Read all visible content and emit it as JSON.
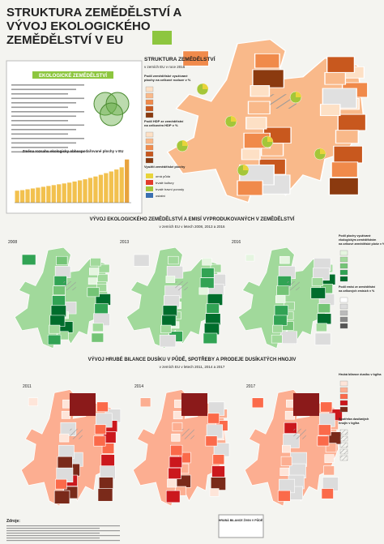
{
  "header": {
    "title_lines": [
      "STRUKTURA ZEMĚDĚLSTVÍ A",
      "VÝVOJ EKOLOGICKÉHO",
      "ZEMĚDĚLSTVÍ V EU"
    ]
  },
  "eco_box": {
    "title": "EKOLOGICKÉ ZEMĚDĚLSTVÍ",
    "chart_title": "Změna rozsahu ekologicky obhospodařované plochy v EU",
    "bar_values": [
      4.3,
      4.5,
      4.8,
      5.1,
      5.4,
      5.7,
      6.0,
      6.3,
      6.6,
      6.9,
      7.2,
      7.6,
      8.0,
      8.4,
      8.9,
      9.4,
      10.0,
      10.6,
      11.2,
      11.9,
      12.7,
      15.5
    ]
  },
  "main_map": {
    "title": "STRUKTURA ZEMĚDĚLSTVÍ",
    "subtitle": "v zemích EU v roce 2016",
    "legend_titles": [
      [
        "Podíl zemědělské využívané",
        "plochy na celkové rozloze v %"
      ],
      [
        "Podíl HDP ze zemědělství",
        "na celkovém HDP v %"
      ],
      [
        "Využití zemědělské plochy"
      ]
    ],
    "land_use": [
      "orná půda",
      "trvalé kultury",
      "trvalé travní porosty",
      "ostatní"
    ]
  },
  "section2": {
    "title": "VÝVOJ EKOLOGICKÉHO ZEMĚDĚLSTVÍ A EMISÍ VYPRODUKOVANÝCH V ZEMĚDĚLSTVÍ",
    "subtitle": "v zemích EU v letech 2008, 2013 a 2016",
    "years": [
      "2008",
      "2013",
      "2016"
    ],
    "legend_titles": [
      [
        "Podíl plochy využívané",
        "ekologickým zemědělstvím",
        "na celkové zemědělské ploše v %"
      ],
      [
        "Podíl emisí ze zemědělství",
        "na celkových emisích v %"
      ]
    ]
  },
  "section3": {
    "title": "VÝVOJ HRUBÉ BILANCE DUSÍKU V PŮDĚ, SPOTŘEBY A PRODEJE DUSÍKATÝCH HNOJIV",
    "subtitle": "v zemích EU v letech 2011, 2014 a 2017",
    "years": [
      "2011",
      "2014",
      "2017"
    ],
    "legend_titles": [
      [
        "Hrubá bilance dusíku v kg/ha"
      ],
      [
        "Spotřeba dusíkatých",
        "hnojiv v kg/ha"
      ]
    ],
    "inset_title": "HRUBÁ BILANCE ŽIVIN V PŮDĚ"
  },
  "footer": {
    "sources_title": "Zdroje:"
  }
}
